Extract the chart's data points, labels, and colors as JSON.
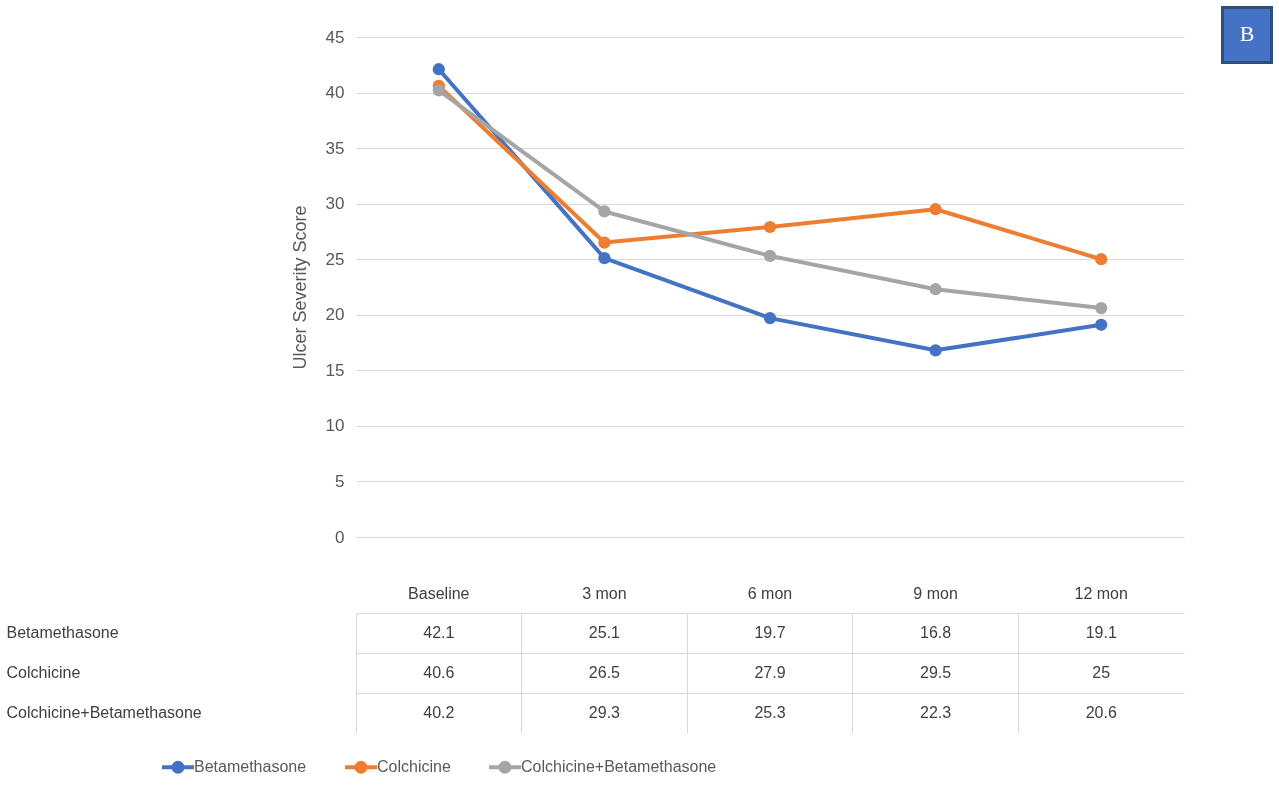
{
  "chart_data": {
    "type": "line",
    "ylabel": "Ulcer Severity Score",
    "categories": [
      "Baseline",
      "3 mon",
      "6 mon",
      "9 mon",
      "12 mon"
    ],
    "series": [
      {
        "name": "Betamethasone",
        "color": "#4472c4",
        "values": [
          42.1,
          25.1,
          19.7,
          16.8,
          19.1
        ]
      },
      {
        "name": "Colchicine",
        "color": "#ed7d31",
        "values": [
          40.6,
          26.5,
          27.9,
          29.5,
          25
        ]
      },
      {
        "name": "Colchicine+Betamethasone",
        "color": "#a5a5a5",
        "values": [
          40.2,
          29.3,
          25.3,
          22.3,
          20.6
        ]
      }
    ],
    "ylim": [
      0,
      45
    ],
    "yticks": [
      0,
      5,
      10,
      15,
      20,
      25,
      30,
      35,
      40,
      45
    ],
    "grid": "y",
    "legend": "bottom",
    "marker": "circle",
    "line_style": "solid",
    "data_labels": true,
    "annotations": [
      "B"
    ]
  }
}
